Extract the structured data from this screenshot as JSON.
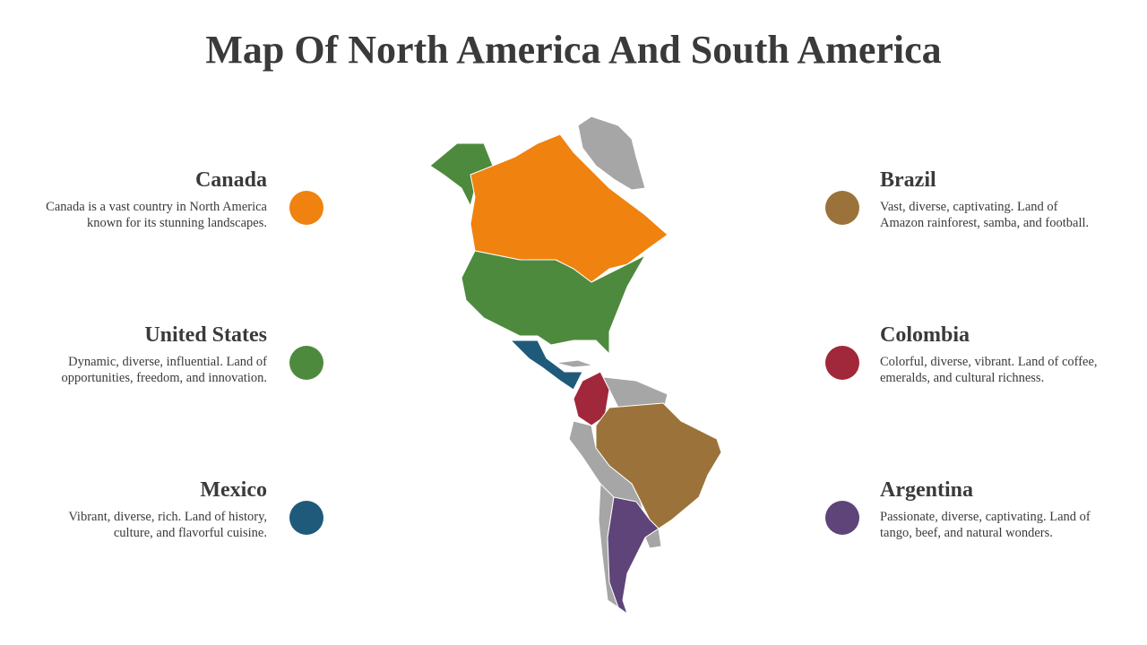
{
  "title": "Map Of North America And South America",
  "items": [
    {
      "name": "Canada",
      "description": "Canada is a vast country in North America known for its stunning landscapes.",
      "color": "#f0820f",
      "side": "left"
    },
    {
      "name": "United States",
      "description": "Dynamic, diverse, influential. Land of opportunities, freedom, and innovation.",
      "color": "#4e8a3e",
      "side": "left"
    },
    {
      "name": "Mexico",
      "description": "Vibrant, diverse, rich. Land of history, culture, and flavorful cuisine.",
      "color": "#1f5a7a",
      "side": "left"
    },
    {
      "name": "Brazil",
      "description": "Vast, diverse, captivating. Land of Amazon rainforest, samba, and football.",
      "color": "#9b733a",
      "side": "right"
    },
    {
      "name": "Colombia",
      "description": "Colorful, diverse, vibrant. Land of coffee, emeralds, and cultural richness.",
      "color": "#a0283a",
      "side": "right"
    },
    {
      "name": "Argentina",
      "description": "Passionate, diverse, captivating. Land of tango, beef, and natural wonders.",
      "color": "#5e4478",
      "side": "right"
    }
  ]
}
